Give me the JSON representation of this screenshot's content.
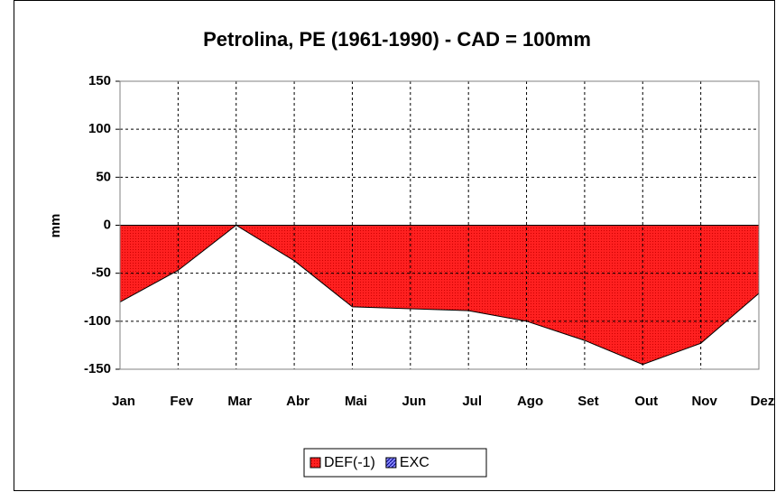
{
  "chart_data": {
    "type": "area",
    "title": "Petrolina, PE (1961-1990) - CAD = 100mm",
    "y_label": "mm",
    "categories": [
      "Jan",
      "Fev",
      "Mar",
      "Abr",
      "Mai",
      "Jun",
      "Jul",
      "Ago",
      "Set",
      "Out",
      "Nov",
      "Dez"
    ],
    "series": [
      {
        "name": "DEF(-1)",
        "color": "#ff0000",
        "values": [
          -80,
          -47,
          0,
          -37,
          -85,
          -87,
          -89,
          -100,
          -120,
          -145,
          -123,
          -71
        ]
      },
      {
        "name": "EXC",
        "color": "#3333cc",
        "values": [
          0,
          0,
          0,
          0,
          0,
          0,
          0,
          0,
          0,
          0,
          0,
          0
        ]
      }
    ],
    "ylim": [
      -150,
      150
    ],
    "yticks": [
      -150,
      -100,
      -50,
      0,
      50,
      100,
      150
    ],
    "grid": true,
    "legend": "bottom"
  }
}
